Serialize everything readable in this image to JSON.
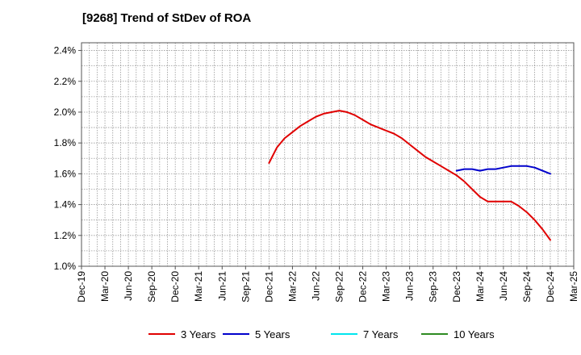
{
  "chart_data": {
    "type": "line",
    "title": "[9268]  Trend of StDev of ROA",
    "xlabel": "",
    "ylabel": "",
    "x_ticks": [
      "Dec-19",
      "Mar-20",
      "Jun-20",
      "Sep-20",
      "Dec-20",
      "Mar-21",
      "Jun-21",
      "Sep-21",
      "Dec-21",
      "Mar-22",
      "Jun-22",
      "Sep-22",
      "Dec-22",
      "Mar-23",
      "Jun-23",
      "Sep-23",
      "Dec-23",
      "Mar-24",
      "Jun-24",
      "Sep-24",
      "Dec-24",
      "Mar-25"
    ],
    "y_ticks": [
      "1.0%",
      "1.2%",
      "1.4%",
      "1.6%",
      "1.8%",
      "2.0%",
      "2.2%",
      "2.4%"
    ],
    "ylim": [
      1.0,
      2.45
    ],
    "grid": true,
    "legend_position": "bottom",
    "series": [
      {
        "name": "3 Years",
        "color": "#e00000",
        "x": [
          "Dec-21",
          "Jan-22",
          "Feb-22",
          "Mar-22",
          "Apr-22",
          "May-22",
          "Jun-22",
          "Jul-22",
          "Aug-22",
          "Sep-22",
          "Oct-22",
          "Nov-22",
          "Dec-22",
          "Jan-23",
          "Feb-23",
          "Mar-23",
          "Apr-23",
          "May-23",
          "Jun-23",
          "Jul-23",
          "Aug-23",
          "Sep-23",
          "Oct-23",
          "Nov-23",
          "Dec-23",
          "Jan-24",
          "Feb-24",
          "Mar-24",
          "Apr-24",
          "May-24",
          "Jun-24",
          "Jul-24",
          "Aug-24",
          "Sep-24",
          "Oct-24",
          "Nov-24",
          "Dec-24"
        ],
        "values": [
          1.67,
          1.77,
          1.83,
          1.87,
          1.91,
          1.94,
          1.97,
          1.99,
          2.0,
          2.01,
          2.0,
          1.98,
          1.95,
          1.92,
          1.9,
          1.88,
          1.86,
          1.83,
          1.79,
          1.75,
          1.71,
          1.68,
          1.65,
          1.62,
          1.59,
          1.55,
          1.5,
          1.45,
          1.42,
          1.42,
          1.42,
          1.42,
          1.39,
          1.35,
          1.3,
          1.24,
          1.17
        ]
      },
      {
        "name": "5 Years",
        "color": "#0000cc",
        "x": [
          "Dec-23",
          "Jan-24",
          "Feb-24",
          "Mar-24",
          "Apr-24",
          "May-24",
          "Jun-24",
          "Jul-24",
          "Aug-24",
          "Sep-24",
          "Oct-24",
          "Nov-24",
          "Dec-24"
        ],
        "values": [
          1.62,
          1.63,
          1.63,
          1.62,
          1.63,
          1.63,
          1.64,
          1.65,
          1.65,
          1.65,
          1.64,
          1.62,
          1.6
        ]
      },
      {
        "name": "7 Years",
        "color": "#00e5ee",
        "x": [],
        "values": []
      },
      {
        "name": "10 Years",
        "color": "#2e8b22",
        "x": [],
        "values": []
      }
    ]
  }
}
